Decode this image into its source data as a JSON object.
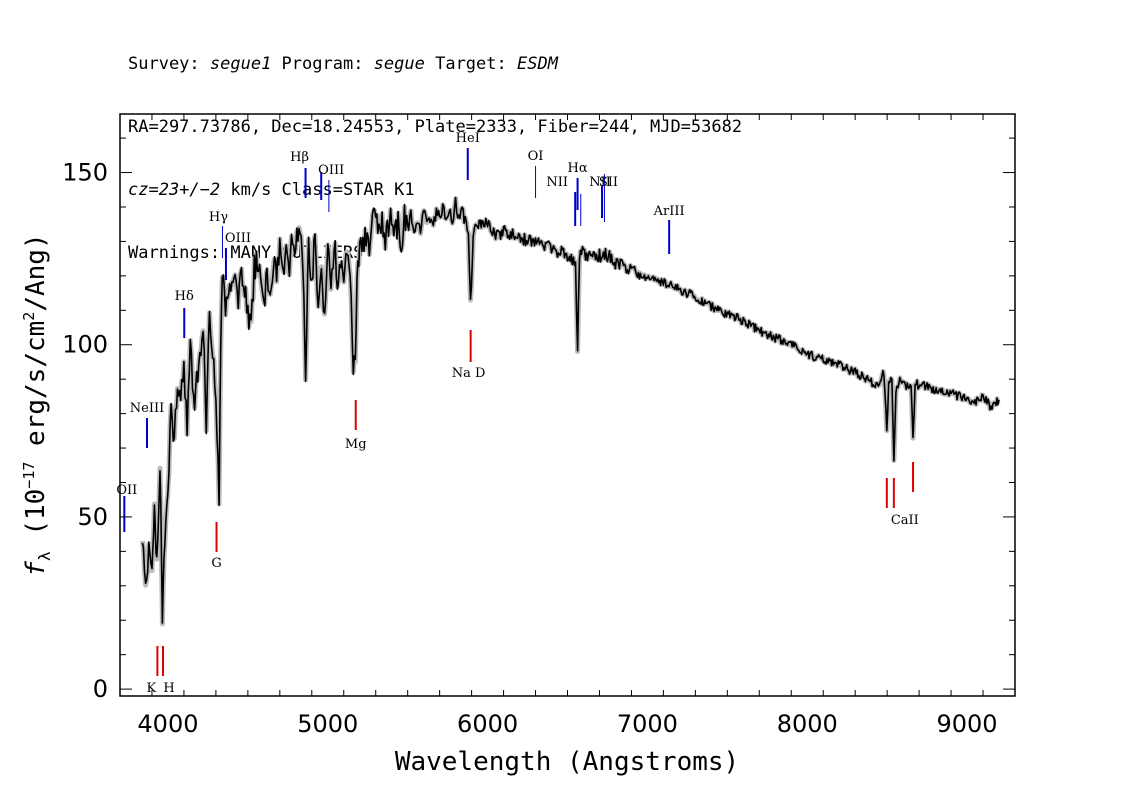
{
  "header": {
    "line1": {
      "survey_label": "Survey: ",
      "survey": "segue1",
      "program_label": " Program: ",
      "program": "segue",
      "target_label": " Target: ",
      "target": "ESDM"
    },
    "line2": "RA=297.73786, Dec=18.24553, Plate=2333, Fiber=244, MJD=53682",
    "line3": {
      "cz": "cz=23+/−2",
      "rest": " km/s Class=STAR K1"
    },
    "line4": "Warnings: MANY_OUTLIERS"
  },
  "chart_data": {
    "type": "line",
    "xlabel": "Wavelength (Angstroms)",
    "ylabel_parts": {
      "f": "f",
      "sub": "λ",
      "unit_a": " (10",
      "exp1": "−17",
      "unit_b": " erg/s/cm",
      "exp2": "2",
      "unit_c": "/Ang)"
    },
    "xlim": [
      3700,
      9300
    ],
    "ylim": [
      -2,
      167
    ],
    "x_ticks": [
      4000,
      5000,
      6000,
      7000,
      8000,
      9000
    ],
    "y_ticks": [
      0,
      50,
      100,
      150
    ],
    "colors": {
      "spectrum": "#000000",
      "error": "#bbbbbb",
      "emission": "#0000cc",
      "absorption": "#dd0000"
    },
    "series": [
      {
        "x": [
          3840,
          3860,
          3880,
          3900,
          3915,
          3930,
          3950,
          3965,
          3980,
          4000,
          4020,
          4040,
          4060,
          4080,
          4100,
          4120,
          4140,
          4160,
          4180,
          4200,
          4220,
          4240,
          4260,
          4280,
          4300,
          4320,
          4330,
          4340,
          4360,
          4380,
          4400,
          4420,
          4440,
          4460,
          4480,
          4500,
          4520,
          4540,
          4560,
          4580,
          4600,
          4620,
          4640,
          4660,
          4680,
          4700,
          4720,
          4740,
          4760,
          4780,
          4800,
          4820,
          4840,
          4861,
          4880,
          4900,
          4920,
          4940,
          4960,
          4980,
          5000,
          5020,
          5040,
          5060,
          5080,
          5100,
          5120,
          5140,
          5160,
          5172,
          5183,
          5200,
          5220,
          5240,
          5260,
          5280,
          5300,
          5320,
          5340,
          5360,
          5380,
          5400,
          5420,
          5440,
          5460,
          5480,
          5500,
          5520,
          5540,
          5560,
          5580,
          5600,
          5620,
          5640,
          5660,
          5680,
          5700,
          5720,
          5740,
          5760,
          5780,
          5800,
          5820,
          5840,
          5860,
          5880,
          5893,
          5910,
          5930,
          5960,
          6000,
          6050,
          6100,
          6150,
          6200,
          6250,
          6300,
          6350,
          6400,
          6450,
          6500,
          6530,
          6550,
          6563,
          6575,
          6600,
          6650,
          6700,
          6750,
          6800,
          6850,
          6900,
          6950,
          7000,
          7100,
          7200,
          7300,
          7400,
          7500,
          7600,
          7700,
          7800,
          7900,
          8000,
          8100,
          8200,
          8300,
          8400,
          8450,
          8480,
          8498,
          8510,
          8530,
          8542,
          8555,
          8580,
          8620,
          8650,
          8662,
          8675,
          8700,
          8750,
          8800,
          8850,
          8900,
          8950,
          9000,
          9050,
          9100,
          9150,
          9200
        ],
        "y": [
          45,
          28,
          40,
          32,
          55,
          35,
          67,
          18,
          45,
          60,
          80,
          72,
          88,
          85,
          95,
          75,
          100,
          82,
          90,
          98,
          105,
          78,
          108,
          100,
          85,
          55,
          95,
          120,
          110,
          115,
          118,
          120,
          112,
          120,
          115,
          110,
          105,
          122,
          125,
          118,
          112,
          120,
          115,
          125,
          118,
          130,
          120,
          128,
          122,
          132,
          128,
          135,
          130,
          91,
          128,
          120,
          130,
          112,
          125,
          108,
          128,
          115,
          130,
          120,
          125,
          118,
          130,
          122,
          95,
          92,
          118,
          130,
          128,
          132,
          128,
          135,
          138,
          132,
          136,
          130,
          134,
          138,
          132,
          136,
          130,
          137,
          133,
          138,
          134,
          136,
          132,
          139,
          134,
          137,
          135,
          139,
          136,
          140,
          137,
          139,
          136,
          141,
          137,
          139,
          136,
          133,
          112,
          130,
          136,
          134,
          135,
          131,
          133,
          132,
          131,
          130,
          130,
          129,
          128,
          127,
          126,
          125,
          124,
          97,
          126,
          127,
          125,
          126,
          126,
          124,
          123,
          122,
          121,
          120,
          118,
          116,
          114,
          111,
          109,
          107,
          104,
          102,
          100,
          97,
          96,
          94,
          92,
          89,
          88,
          92,
          75,
          90,
          89,
          67,
          86,
          90,
          88,
          87,
          72,
          89,
          88,
          88,
          87,
          86,
          86,
          85,
          84,
          83,
          85,
          82,
          84
        ]
      }
    ],
    "emission_lines": [
      {
        "x": 3727,
        "label": "OII"
      },
      {
        "x": 3869,
        "label": "NeIII"
      },
      {
        "x": 4102,
        "label": "Hδ"
      },
      {
        "x": 4341,
        "label": "Hγ"
      },
      {
        "x": 4363,
        "label": "OIII"
      },
      {
        "x": 4861,
        "label": "Hβ"
      },
      {
        "x": 4959,
        "label": "OIII"
      },
      {
        "x": 5007,
        "label": ""
      },
      {
        "x": 5876,
        "label": "HeI"
      },
      {
        "x": 6300,
        "label": "OI"
      },
      {
        "x": 6548,
        "label": "NII"
      },
      {
        "x": 6563,
        "label": "Hα"
      },
      {
        "x": 6583,
        "label": ""
      },
      {
        "x": 6716,
        "label": "NII"
      },
      {
        "x": 6731,
        "label": "SII"
      },
      {
        "x": 7136,
        "label": "ArIII"
      }
    ],
    "absorption_lines": [
      {
        "x": 3934,
        "label": "K"
      },
      {
        "x": 3969,
        "label": "H"
      },
      {
        "x": 4304,
        "label": "G"
      },
      {
        "x": 5175,
        "label": "Mg"
      },
      {
        "x": 5894,
        "label": "Na D"
      },
      {
        "x": 8498,
        "label": "CaII"
      },
      {
        "x": 8542,
        "label": ""
      },
      {
        "x": 8662,
        "label": ""
      }
    ]
  }
}
